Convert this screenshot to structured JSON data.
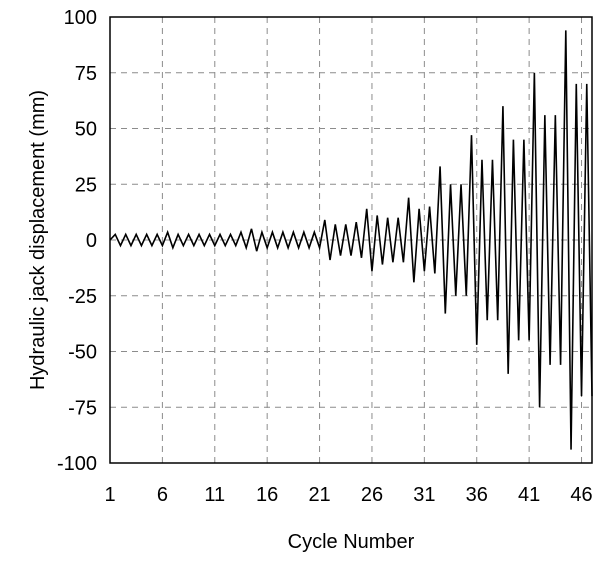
{
  "chart_data": {
    "type": "line",
    "title": "",
    "xlabel": "Cycle Number",
    "ylabel": "Hydraulic jack displacement (mm)",
    "xlim": [
      1,
      47
    ],
    "ylim": [
      -100,
      100
    ],
    "xticks": [
      1,
      6,
      11,
      16,
      21,
      26,
      31,
      36,
      41,
      46
    ],
    "yticks": [
      100,
      75,
      50,
      25,
      0,
      -25,
      -50,
      -75,
      -100
    ],
    "grid": true,
    "series": [
      {
        "x": [
          1,
          1.5,
          2,
          2.5,
          3,
          3.5,
          4,
          4.5,
          5,
          5.5,
          6,
          6.5,
          7,
          7.5,
          8,
          8.5,
          9,
          9.5,
          10,
          10.5,
          11,
          11.5,
          12,
          12.5,
          13,
          13.5,
          14,
          14.5,
          15,
          15.5,
          16,
          16.5,
          17,
          17.5,
          18,
          18.5,
          19,
          19.5,
          20,
          20.5,
          21,
          21.5,
          22,
          22.5,
          23,
          23.5,
          24,
          24.5,
          25,
          25.5,
          26,
          26.5,
          27,
          27.5,
          28,
          28.5,
          29,
          29.5,
          30,
          30.5,
          31,
          31.5,
          32,
          32.5,
          33,
          33.5,
          34,
          34.5,
          35,
          35.5,
          36,
          36.5,
          37,
          37.5,
          38,
          38.5,
          39,
          39.5,
          40,
          40.5,
          41,
          41.5,
          42,
          42.5,
          43,
          43.5,
          44,
          44.5,
          45,
          45.5,
          46,
          46.5,
          47
        ],
        "y": [
          0,
          2.5,
          -2.5,
          2.5,
          -2.5,
          2.5,
          -2.5,
          2.5,
          -2.5,
          2.5,
          -2.5,
          3.5,
          -3.5,
          2.5,
          -2.5,
          2.5,
          -2.5,
          2.5,
          -2.5,
          2.5,
          -2.5,
          2.5,
          -2.5,
          2.5,
          -2.5,
          3.5,
          -3.5,
          5,
          -5,
          3.5,
          -3.5,
          3.5,
          -3.5,
          3.5,
          -3.5,
          3.5,
          -3.5,
          3.5,
          -3.5,
          3.5,
          -3.5,
          9,
          -9,
          7,
          -7,
          7,
          -7,
          8,
          -8,
          14,
          -14,
          11,
          -11,
          10,
          -10,
          10,
          -10,
          19,
          -19,
          14,
          -14,
          15,
          -15,
          33,
          -33,
          25,
          -25,
          25,
          -25,
          47,
          -47,
          36,
          -36,
          36,
          -36,
          60,
          -60,
          45,
          -45,
          45,
          -45,
          75,
          -75,
          56,
          -56,
          56,
          -56,
          94,
          -94,
          70,
          -70,
          70,
          -70
        ]
      }
    ]
  }
}
